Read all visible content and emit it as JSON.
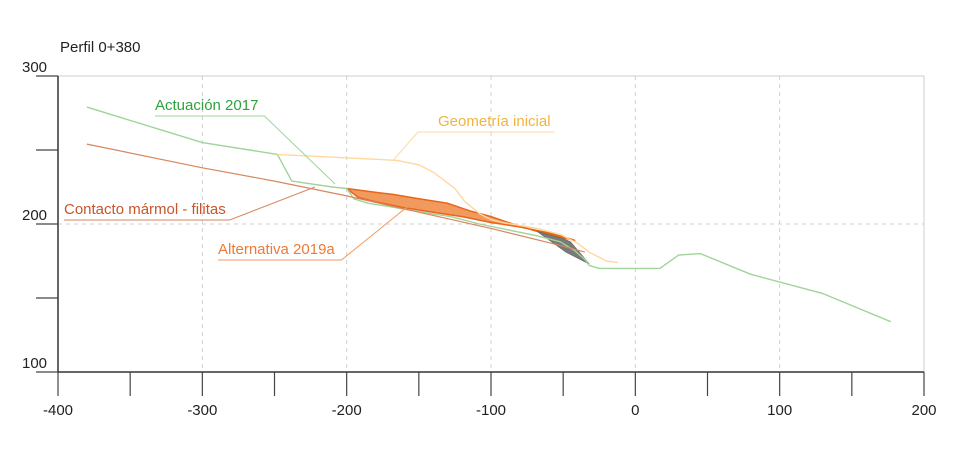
{
  "chart_data": {
    "type": "line",
    "title": "Perfil 0+380",
    "xlabel": "",
    "ylabel": "",
    "xlim": [
      -400,
      200
    ],
    "ylim": [
      100,
      300
    ],
    "x_ticks": [
      {
        "value": -400,
        "label": "-400"
      },
      {
        "value": -300,
        "label": "-300"
      },
      {
        "value": -200,
        "label": "-200"
      },
      {
        "value": -100,
        "label": "-100"
      },
      {
        "value": 0,
        "label": "0"
      },
      {
        "value": 100,
        "label": "100"
      },
      {
        "value": 200,
        "label": "200"
      }
    ],
    "y_ticks": [
      {
        "value": 300,
        "label": "300"
      },
      {
        "value": 250,
        "label": ""
      },
      {
        "value": 200,
        "label": "200"
      },
      {
        "value": 150,
        "label": ""
      },
      {
        "value": 100,
        "label": "100"
      }
    ],
    "x_minor": [
      -350,
      -250,
      -150,
      -50,
      50,
      150
    ],
    "grid": "dashed vertical and horizontal",
    "colors": {
      "actuacion": "#9fd49a",
      "geometria": "#ffd8a0",
      "contacto": "#d9865f",
      "alternativa_fill": "#f29a5e",
      "alternativa_edge": "#e8661c",
      "dark_wedge": "#7a7a7a",
      "label_actuacion": "#2ea33c",
      "label_geometria": "#f2b441",
      "label_contacto": "#c8552a",
      "label_alternativa": "#ee7a35"
    },
    "series": [
      {
        "key": "actuacion",
        "name": "Actuación 2017",
        "x": [
          -380,
          -300,
          -248,
          -238,
          -210,
          -200,
          -195,
          -185,
          -172,
          -148,
          -128,
          -108,
          -88,
          -68,
          -52,
          -42,
          -35,
          -32,
          -25,
          0,
          17,
          30,
          45,
          80,
          130,
          177
        ],
        "y": [
          279,
          255,
          247,
          229,
          225,
          224,
          217,
          214,
          212,
          208,
          205,
          200,
          196,
          192,
          188,
          182,
          176,
          172,
          170,
          170,
          170,
          179,
          180,
          166,
          153,
          134
        ]
      },
      {
        "key": "geometria",
        "name": "Geometría inicial",
        "x": [
          -248,
          -185,
          -165,
          -150,
          -140,
          -125,
          -118,
          -108,
          -100,
          -92,
          -80,
          -68,
          -60,
          -52,
          -40,
          -32,
          -20,
          -12
        ],
        "y": [
          247,
          244,
          243,
          240,
          235,
          224,
          215,
          207,
          203,
          201,
          199,
          197,
          195,
          193,
          187,
          181,
          175,
          174
        ]
      },
      {
        "key": "contacto",
        "name": "Contacto mármol -  filitas",
        "x": [
          -380,
          -300,
          -250,
          -200,
          -150,
          -100,
          -50,
          -35
        ],
        "y": [
          254,
          238,
          229,
          219,
          208,
          197,
          185,
          181
        ]
      }
    ],
    "polygons": [
      {
        "key": "alternativa",
        "name": "Alternativa 2019a",
        "x": [
          -200,
          -185,
          -168,
          -150,
          -130,
          -115,
          -100,
          -85,
          -68,
          -52,
          -42,
          -45,
          -60,
          -80,
          -100,
          -120,
          -140,
          -160,
          -180,
          -192
        ],
        "y": [
          224,
          222,
          220,
          217,
          214,
          209,
          205,
          200,
          195,
          191,
          189,
          190,
          194,
          198,
          201,
          205,
          208,
          211,
          215,
          218
        ]
      },
      {
        "key": "wedge",
        "name": "",
        "x": [
          -68,
          -50,
          -45,
          -38,
          -32,
          -36,
          -48
        ],
        "y": [
          195,
          190,
          188,
          180,
          173,
          175,
          181
        ]
      }
    ],
    "annotations": [
      {
        "key": "actuacion",
        "text": "Actuación 2017",
        "position": "upper-left",
        "leader_to": [
          -208,
          227
        ]
      },
      {
        "key": "geometria",
        "text": "Geometría inicial",
        "position": "upper-right",
        "leader_to": [
          -168,
          243
        ]
      },
      {
        "key": "contacto",
        "text": "Contacto mármol -  filitas",
        "position": "left",
        "leader_to": [
          -222,
          225
        ]
      },
      {
        "key": "alternativa",
        "text": "Alternativa 2019a",
        "position": "lower-left",
        "leader_to": [
          -155,
          214
        ]
      }
    ]
  }
}
